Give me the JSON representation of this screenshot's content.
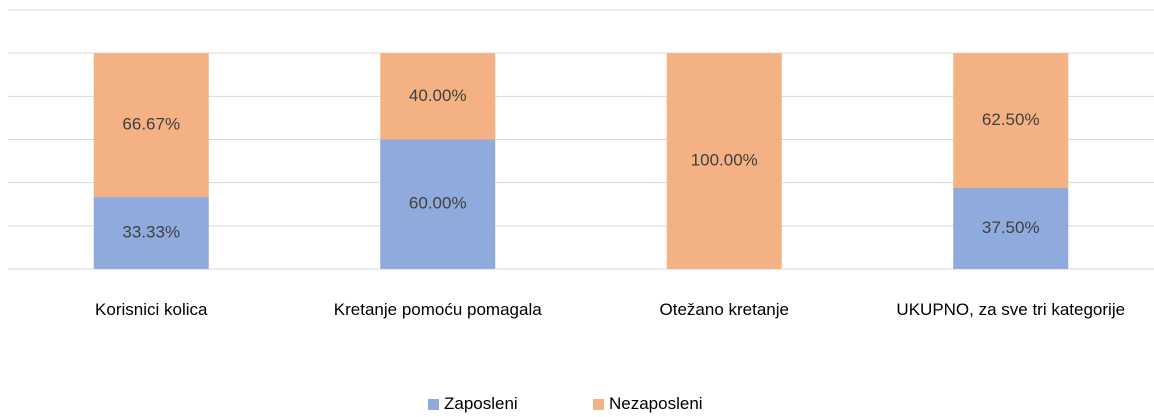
{
  "chart_data": {
    "type": "stacked_bar",
    "categories": [
      "Korisnici kolica",
      "Kretanje pomoću pomagala",
      "Otežano kretanje",
      "UKUPNO, za sve tri kategorije"
    ],
    "series": [
      {
        "name": "Zaposleni",
        "color": "#8faadc",
        "values": [
          33.33,
          60,
          0,
          37.5
        ],
        "value_labels": [
          "33.33%",
          "60.00%",
          null,
          "37.50%"
        ]
      },
      {
        "name": "Nezaposleni",
        "color": "#f4b183",
        "values": [
          66.67,
          40,
          100,
          62.5
        ],
        "value_labels": [
          "66.67%",
          "40.00%",
          "100.00%",
          "62.50%"
        ]
      }
    ],
    "ylim": [
      0,
      120
    ],
    "yticks": [
      0,
      20,
      40,
      60,
      80,
      100,
      120
    ],
    "grid": true,
    "legend": "bottom"
  }
}
